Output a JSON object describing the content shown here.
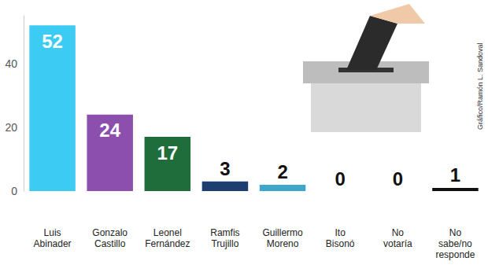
{
  "chart_data": {
    "type": "bar",
    "categories": [
      "Luis\nAbinader",
      "Gonzalo\nCastillo",
      "Leonel\nFernández",
      "Ramfis\nTrujillo",
      "Guillermo\nMoreno",
      "Ito\nBisonó",
      "No\nvotaría",
      "No\nsabe/no\nresponde"
    ],
    "values": [
      52,
      24,
      17,
      3,
      2,
      0,
      0,
      1
    ],
    "colors": [
      "#3ccbf2",
      "#8c4fae",
      "#1e6d3a",
      "#1c3f70",
      "#3ea6cc",
      "#222222",
      "#222222",
      "#111111"
    ],
    "ylim": [
      0,
      55
    ],
    "yticks": [
      0,
      20,
      40
    ],
    "grid": false,
    "data_labels": true,
    "annotations": [
      "Gráfico/Ramón L. Sandoval"
    ]
  }
}
